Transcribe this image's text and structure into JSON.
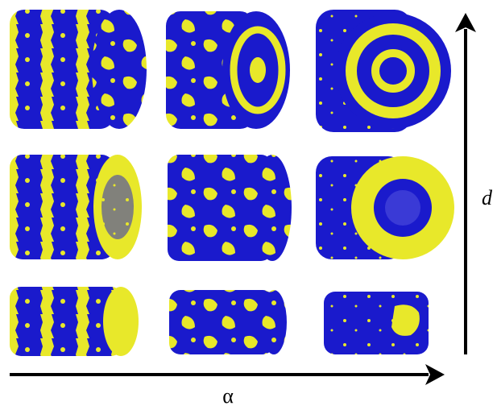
{
  "axes": {
    "vertical_label": "d",
    "horizontal_label": "α"
  }
}
